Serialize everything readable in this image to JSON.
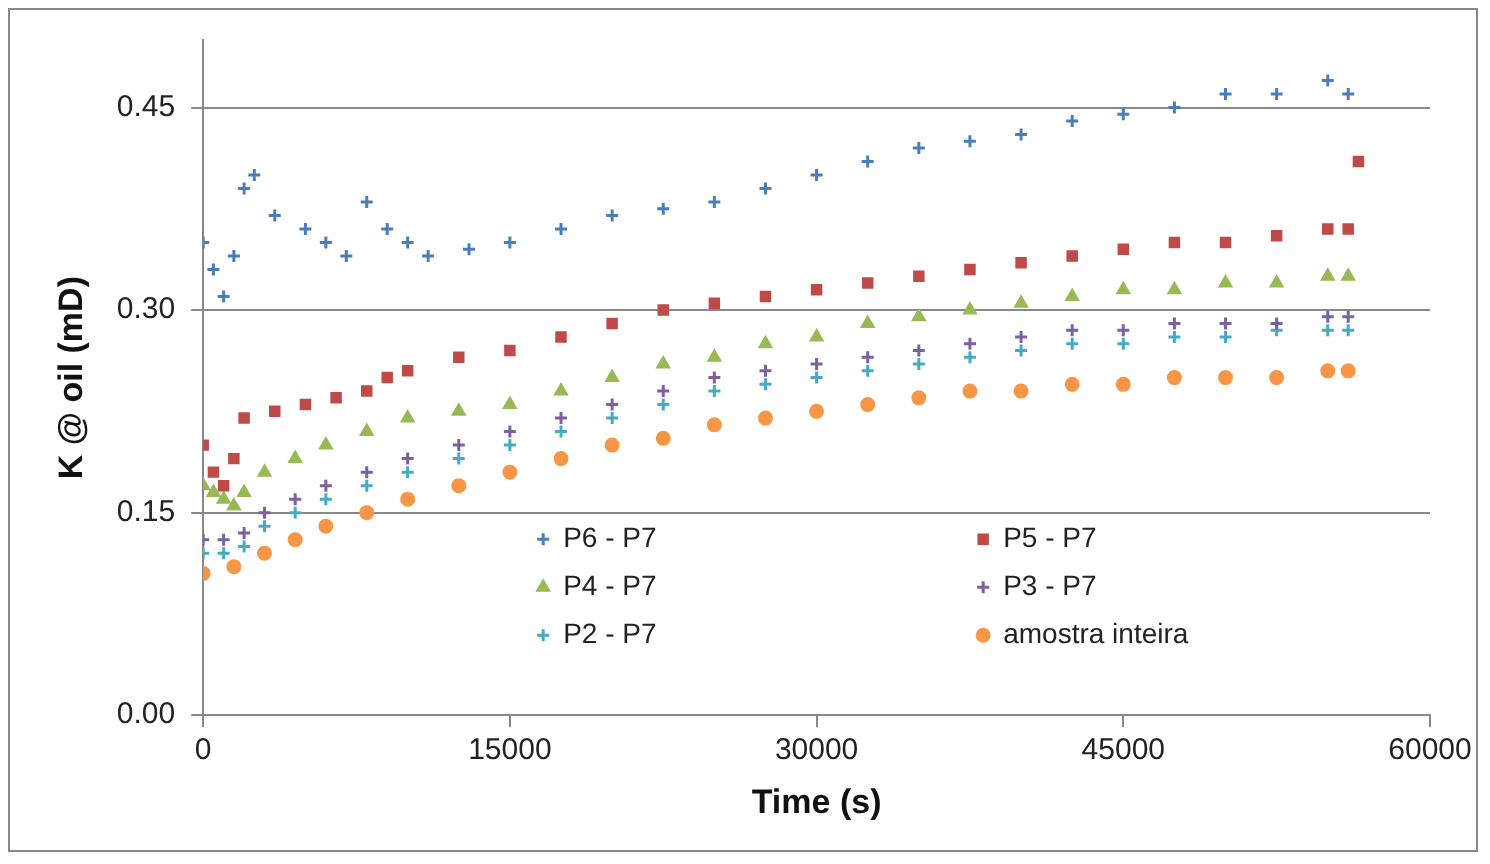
{
  "chart_data": {
    "type": "scatter",
    "xlabel": "Time (s)",
    "ylabel": "K @ oil (mD)",
    "xlim": [
      0,
      60000
    ],
    "xticks": [
      0,
      15000,
      30000,
      45000,
      60000
    ],
    "ylim": [
      0,
      0.5
    ],
    "yticks": [
      {
        "value": 0,
        "label": "0.00"
      },
      {
        "value": 0.15,
        "label": "0.15"
      },
      {
        "value": 0.3,
        "label": "0.30"
      },
      {
        "value": 0.45,
        "label": "0.45"
      }
    ],
    "grid": "y",
    "legend": "bottom",
    "series": [
      {
        "name": "P6 - P7",
        "color": "#4a7ebb",
        "marker": "cross",
        "x": [
          0,
          500,
          1000,
          1500,
          2000,
          2500,
          3500,
          5000,
          6000,
          7000,
          8000,
          9000,
          10000,
          11000,
          13000,
          15000,
          17500,
          20000,
          22500,
          25000,
          27500,
          30000,
          32500,
          35000,
          37500,
          40000,
          42500,
          45000,
          47500,
          50000,
          52500,
          55000,
          56000
        ],
        "values": [
          0.35,
          0.33,
          0.31,
          0.34,
          0.39,
          0.4,
          0.37,
          0.36,
          0.35,
          0.34,
          0.38,
          0.36,
          0.35,
          0.34,
          0.345,
          0.35,
          0.36,
          0.37,
          0.375,
          0.38,
          0.39,
          0.4,
          0.41,
          0.42,
          0.425,
          0.43,
          0.44,
          0.445,
          0.45,
          0.46,
          0.46,
          0.47,
          0.46
        ]
      },
      {
        "name": "P5 - P7",
        "color": "#be4b48",
        "marker": "square",
        "x": [
          0,
          500,
          1000,
          1500,
          2000,
          3500,
          5000,
          6500,
          8000,
          9000,
          10000,
          12500,
          15000,
          17500,
          20000,
          22500,
          25000,
          27500,
          30000,
          32500,
          35000,
          37500,
          40000,
          42500,
          45000,
          47500,
          50000,
          52500,
          55000,
          56000,
          56500
        ],
        "values": [
          0.2,
          0.18,
          0.17,
          0.19,
          0.22,
          0.225,
          0.23,
          0.235,
          0.24,
          0.25,
          0.255,
          0.265,
          0.27,
          0.28,
          0.29,
          0.3,
          0.305,
          0.31,
          0.315,
          0.32,
          0.325,
          0.33,
          0.335,
          0.34,
          0.345,
          0.35,
          0.35,
          0.355,
          0.36,
          0.36,
          0.41
        ]
      },
      {
        "name": "P4 - P7",
        "color": "#98b954",
        "marker": "triangle",
        "x": [
          0,
          500,
          1000,
          1500,
          2000,
          3000,
          4500,
          6000,
          8000,
          10000,
          12500,
          15000,
          17500,
          20000,
          22500,
          25000,
          27500,
          30000,
          32500,
          35000,
          37500,
          40000,
          42500,
          45000,
          47500,
          50000,
          52500,
          55000,
          56000
        ],
        "values": [
          0.17,
          0.165,
          0.16,
          0.155,
          0.165,
          0.18,
          0.19,
          0.2,
          0.21,
          0.22,
          0.225,
          0.23,
          0.24,
          0.25,
          0.26,
          0.265,
          0.275,
          0.28,
          0.29,
          0.295,
          0.3,
          0.305,
          0.31,
          0.315,
          0.315,
          0.32,
          0.32,
          0.325,
          0.325
        ]
      },
      {
        "name": "P3 - P7",
        "color": "#7d60a0",
        "marker": "cross",
        "x": [
          0,
          1000,
          2000,
          3000,
          4500,
          6000,
          8000,
          10000,
          12500,
          15000,
          17500,
          20000,
          22500,
          25000,
          27500,
          30000,
          32500,
          35000,
          37500,
          40000,
          42500,
          45000,
          47500,
          50000,
          52500,
          55000,
          56000
        ],
        "values": [
          0.13,
          0.13,
          0.135,
          0.15,
          0.16,
          0.17,
          0.18,
          0.19,
          0.2,
          0.21,
          0.22,
          0.23,
          0.24,
          0.25,
          0.255,
          0.26,
          0.265,
          0.27,
          0.275,
          0.28,
          0.285,
          0.285,
          0.29,
          0.29,
          0.29,
          0.295,
          0.295
        ]
      },
      {
        "name": "P2 - P7",
        "color": "#46aac5",
        "marker": "cross",
        "x": [
          0,
          1000,
          2000,
          3000,
          4500,
          6000,
          8000,
          10000,
          12500,
          15000,
          17500,
          20000,
          22500,
          25000,
          27500,
          30000,
          32500,
          35000,
          37500,
          40000,
          42500,
          45000,
          47500,
          50000,
          52500,
          55000,
          56000
        ],
        "values": [
          0.12,
          0.12,
          0.125,
          0.14,
          0.15,
          0.16,
          0.17,
          0.18,
          0.19,
          0.2,
          0.21,
          0.22,
          0.23,
          0.24,
          0.245,
          0.25,
          0.255,
          0.26,
          0.265,
          0.27,
          0.275,
          0.275,
          0.28,
          0.28,
          0.285,
          0.285,
          0.285
        ]
      },
      {
        "name": "amostra inteira",
        "color": "#f79646",
        "marker": "circle",
        "x": [
          0,
          1500,
          3000,
          4500,
          6000,
          8000,
          10000,
          12500,
          15000,
          17500,
          20000,
          22500,
          25000,
          27500,
          30000,
          32500,
          35000,
          37500,
          40000,
          42500,
          45000,
          47500,
          50000,
          52500,
          55000,
          56000
        ],
        "values": [
          0.105,
          0.11,
          0.12,
          0.13,
          0.14,
          0.15,
          0.16,
          0.17,
          0.18,
          0.19,
          0.2,
          0.205,
          0.215,
          0.22,
          0.225,
          0.23,
          0.235,
          0.24,
          0.24,
          0.245,
          0.245,
          0.25,
          0.25,
          0.25,
          0.255,
          0.255
        ]
      }
    ]
  }
}
